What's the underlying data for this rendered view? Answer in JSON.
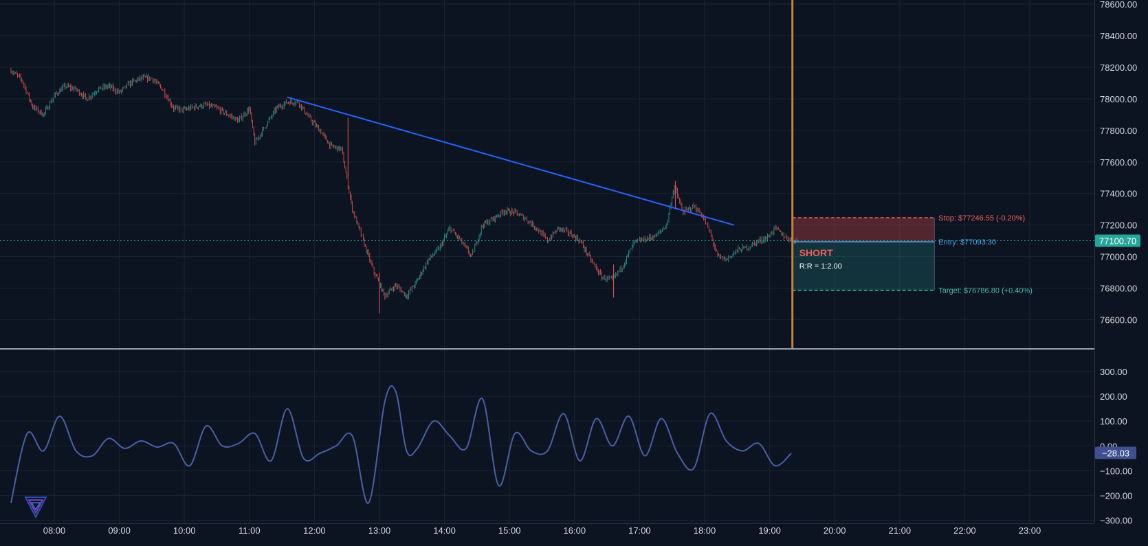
{
  "colors": {
    "background": "#0d1421",
    "grid": "#1a2333",
    "axis_text": "#d5d9e0",
    "candle_up": "#26a69a",
    "candle_down": "#ef5350",
    "trendline": "#2962ff",
    "vertical_marker": "#c8813a",
    "price_line": "#26a69a",
    "stop": "#f0605d",
    "entry": "#4ea8f0",
    "target": "#4db6ac",
    "oscillator": "#4a5fa8",
    "oscillator_badge": "#3f4f8f"
  },
  "price_axis": {
    "ticks": [
      "78600.00",
      "78400.00",
      "78200.00",
      "78000.00",
      "77800.00",
      "77600.00",
      "77400.00",
      "77200.00",
      "77000.00",
      "76800.00",
      "76600.00"
    ],
    "current_price_label": "77100.70"
  },
  "time_axis": {
    "ticks": [
      "08:00",
      "09:00",
      "10:00",
      "11:00",
      "12:00",
      "13:00",
      "14:00",
      "15:00",
      "16:00",
      "17:00",
      "18:00",
      "19:00",
      "20:00",
      "21:00",
      "22:00",
      "23:00"
    ]
  },
  "oscillator_axis": {
    "ticks": [
      "300.00",
      "200.00",
      "100.00",
      "0.00",
      "−100.00",
      "−200.00",
      "−300.00"
    ],
    "current_value_label": "−28.03"
  },
  "position": {
    "side_label": "SHORT",
    "rr_label": "R:R = 1:2.00",
    "stop_label": "Stop: $77246.55 (-0.20%)",
    "entry_label": "Entry: $77093.30",
    "target_label": "Target: $76786.80 (+0.40%)"
  },
  "logo": {
    "icon": "brand-logo-icon"
  },
  "chart_data": [
    {
      "type": "candlestick",
      "title": "",
      "y_range": [
        76500,
        78600
      ],
      "x_range": [
        "07:20",
        "23:50"
      ],
      "last_price": 77100.7,
      "price_path": [
        [
          "07:20",
          78180
        ],
        [
          "07:30",
          78120
        ],
        [
          "07:40",
          77950
        ],
        [
          "07:50",
          77900
        ],
        [
          "08:00",
          78020
        ],
        [
          "08:10",
          78080
        ],
        [
          "08:20",
          78060
        ],
        [
          "08:30",
          78000
        ],
        [
          "08:40",
          78060
        ],
        [
          "08:50",
          78080
        ],
        [
          "09:00",
          78040
        ],
        [
          "09:10",
          78100
        ],
        [
          "09:20",
          78130
        ],
        [
          "09:30",
          78130
        ],
        [
          "09:40",
          78060
        ],
        [
          "09:50",
          77940
        ],
        [
          "10:00",
          77930
        ],
        [
          "10:10",
          77950
        ],
        [
          "10:20",
          77960
        ],
        [
          "10:30",
          77940
        ],
        [
          "10:40",
          77900
        ],
        [
          "10:50",
          77860
        ],
        [
          "11:00",
          77940
        ],
        [
          "11:05",
          77720
        ],
        [
          "11:15",
          77830
        ],
        [
          "11:25",
          77940
        ],
        [
          "11:35",
          77980
        ],
        [
          "11:45",
          77980
        ],
        [
          "11:55",
          77880
        ],
        [
          "12:05",
          77800
        ],
        [
          "12:15",
          77700
        ],
        [
          "12:25",
          77680
        ],
        [
          "12:35",
          77300
        ],
        [
          "12:45",
          77100
        ],
        [
          "12:55",
          76900
        ],
        [
          "13:05",
          76750
        ],
        [
          "13:15",
          76820
        ],
        [
          "13:25",
          76750
        ],
        [
          "13:35",
          76850
        ],
        [
          "13:45",
          76980
        ],
        [
          "13:55",
          77050
        ],
        [
          "14:05",
          77180
        ],
        [
          "14:15",
          77100
        ],
        [
          "14:25",
          77000
        ],
        [
          "14:35",
          77200
        ],
        [
          "14:45",
          77240
        ],
        [
          "14:55",
          77290
        ],
        [
          "15:05",
          77280
        ],
        [
          "15:15",
          77240
        ],
        [
          "15:25",
          77180
        ],
        [
          "15:35",
          77100
        ],
        [
          "15:45",
          77180
        ],
        [
          "15:55",
          77150
        ],
        [
          "16:05",
          77100
        ],
        [
          "16:15",
          76980
        ],
        [
          "16:25",
          76870
        ],
        [
          "16:35",
          76850
        ],
        [
          "16:45",
          76950
        ],
        [
          "16:55",
          77090
        ],
        [
          "17:05",
          77110
        ],
        [
          "17:15",
          77130
        ],
        [
          "17:25",
          77200
        ],
        [
          "17:32",
          77450
        ],
        [
          "17:40",
          77280
        ],
        [
          "17:50",
          77320
        ],
        [
          "17:58",
          77260
        ],
        [
          "18:05",
          77150
        ],
        [
          "18:12",
          77000
        ],
        [
          "18:20",
          76980
        ],
        [
          "18:30",
          77040
        ],
        [
          "18:40",
          77060
        ],
        [
          "18:50",
          77100
        ],
        [
          "18:58",
          77120
        ],
        [
          "19:05",
          77180
        ],
        [
          "19:15",
          77120
        ],
        [
          "19:25",
          77100
        ]
      ]
    },
    {
      "type": "line",
      "title": "",
      "y_range": [
        -300,
        300
      ],
      "last_value": -28.03,
      "values_x": [
        "07:20",
        "07:35",
        "07:50",
        "08:05",
        "08:20",
        "08:35",
        "08:50",
        "09:05",
        "09:20",
        "09:35",
        "09:50",
        "10:05",
        "10:20",
        "10:35",
        "10:50",
        "11:05",
        "11:20",
        "11:35",
        "11:50",
        "12:05",
        "12:20",
        "12:35",
        "12:50",
        "13:05",
        "13:15",
        "13:25",
        "13:35",
        "13:50",
        "14:05",
        "14:20",
        "14:35",
        "14:50",
        "15:05",
        "15:20",
        "15:35",
        "15:50",
        "16:05",
        "16:20",
        "16:35",
        "16:50",
        "17:05",
        "17:20",
        "17:35",
        "17:50",
        "18:05",
        "18:20",
        "18:35",
        "18:50",
        "19:05",
        "19:20"
      ],
      "values": [
        -230,
        50,
        -20,
        120,
        -20,
        -40,
        30,
        -10,
        20,
        -5,
        10,
        -80,
        80,
        0,
        10,
        50,
        -60,
        150,
        -50,
        -30,
        0,
        40,
        -230,
        180,
        220,
        -20,
        -10,
        100,
        40,
        -10,
        190,
        -160,
        50,
        -20,
        -20,
        130,
        -60,
        110,
        0,
        120,
        -40,
        110,
        -30,
        -90,
        130,
        20,
        -20,
        10,
        -80,
        -30
      ]
    }
  ]
}
